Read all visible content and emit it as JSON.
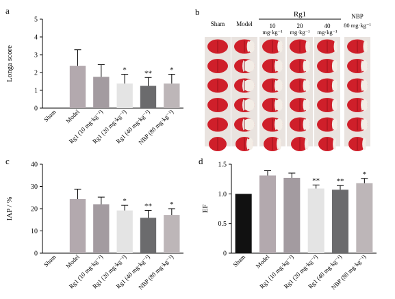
{
  "panel_letters": {
    "a": "a",
    "b": "b",
    "c": "c",
    "d": "d"
  },
  "chart_data": [
    {
      "id": "a",
      "type": "bar",
      "ylabel": "Longa score",
      "ylim": [
        0,
        5
      ],
      "yticks": [
        0,
        1,
        2,
        3,
        4,
        5
      ],
      "categories": [
        "Sham",
        "Model",
        "Rg1 (10 mg·kg⁻¹)",
        "Rg1 (20 mg·kg⁻¹)",
        "Rg1 (40 mg·kg⁻¹)",
        "NBP (80 mg·kg⁻¹)"
      ],
      "values": [
        0,
        2.38,
        1.76,
        1.38,
        1.25,
        1.38
      ],
      "errors": [
        0,
        0.9,
        0.68,
        0.52,
        0.47,
        0.52
      ],
      "significance": [
        "",
        "",
        "",
        "*",
        "**",
        "*"
      ],
      "colors": [
        "#1a1a1a",
        "#b3a9ae",
        "#a39ba0",
        "#e4e4e4",
        "#6b6b6d",
        "#bdb6b8"
      ]
    },
    {
      "id": "c",
      "type": "bar",
      "ylabel": "IAP / %",
      "ylim": [
        0,
        40
      ],
      "yticks": [
        0,
        10,
        20,
        30,
        40
      ],
      "categories": [
        "Sham",
        "Model",
        "Rg1 (10 mg·kg⁻¹)",
        "Rg1 (20 mg·kg⁻¹)",
        "Rg1 (40 mg·kg⁻¹)",
        "NBP (80 mg·kg⁻¹)"
      ],
      "values": [
        0,
        24.3,
        22.0,
        19.2,
        15.9,
        17.2
      ],
      "errors": [
        0,
        4.5,
        3.2,
        2.3,
        3.3,
        2.8
      ],
      "significance": [
        "",
        "",
        "",
        "*",
        "**",
        "*"
      ],
      "colors": [
        "#1a1a1a",
        "#b3a9ae",
        "#a39ba0",
        "#e4e4e4",
        "#6b6b6d",
        "#bdb6b8"
      ]
    },
    {
      "id": "d",
      "type": "bar",
      "ylabel": "EF",
      "ylim": [
        0,
        1.5
      ],
      "yticks": [
        0,
        0.5,
        1.0,
        1.5
      ],
      "ytick_labels": [
        "0",
        "0.5",
        "1.0",
        "1.5"
      ],
      "categories": [
        "Sham",
        "Model",
        "Rg1 (10 mg·kg⁻¹)",
        "Rg1 (20 mg·kg⁻¹)",
        "Rg1 (40 mg·kg⁻¹)",
        "NBP (80 mg·kg⁻¹)"
      ],
      "values": [
        1.0,
        1.31,
        1.27,
        1.09,
        1.07,
        1.18
      ],
      "errors": [
        0,
        0.08,
        0.08,
        0.06,
        0.07,
        0.08
      ],
      "significance": [
        "",
        "",
        "",
        "**",
        "**",
        "*"
      ],
      "colors": [
        "#111111",
        "#b3a9ae",
        "#a39ba0",
        "#e4e4e4",
        "#6b6b6d",
        "#bdb6b8"
      ]
    }
  ],
  "stain_panel": {
    "group_header": "Rg1",
    "columns": [
      "Sham",
      "Model",
      "10",
      "20",
      "40",
      "NBP"
    ],
    "column_units": [
      "",
      "",
      "mg·kg⁻¹",
      "mg·kg⁻¹",
      "mg·kg⁻¹",
      "80 mg·kg⁻¹"
    ],
    "rows": 6,
    "infarct_fraction": [
      0,
      0.55,
      0.35,
      0.3,
      0.22,
      0.28
    ]
  }
}
